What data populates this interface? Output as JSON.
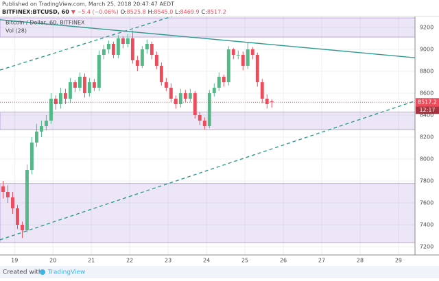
{
  "header": {
    "published": "Published on TradingView.com, March 25, 2018 20:47:47 AEDT",
    "symbol": "BITFINEX:BTCUSD, 60",
    "change": "▼ −5.4 (−0.06%)",
    "ohlc": [
      {
        "label": "O:",
        "value": "8525.8"
      },
      {
        "label": "H:",
        "value": "8545.0"
      },
      {
        "label": "L:",
        "value": "8469.9"
      },
      {
        "label": "C:",
        "value": "8517.2"
      }
    ]
  },
  "chart_data": {
    "type": "candlestick",
    "title": "Bitcoin / Dollar, 60, BITFINEX",
    "indicator": "Vol (28)",
    "x": [
      18.7,
      18.825,
      18.95,
      19.075,
      19.2,
      19.325,
      19.45,
      19.575,
      19.7,
      19.825,
      19.95,
      20.075,
      20.2,
      20.325,
      20.45,
      20.575,
      20.7,
      20.825,
      20.95,
      21.075,
      21.2,
      21.325,
      21.45,
      21.575,
      21.7,
      21.825,
      21.95,
      22.075,
      22.2,
      22.325,
      22.45,
      22.575,
      22.7,
      22.825,
      22.95,
      23.075,
      23.2,
      23.325,
      23.45,
      23.575,
      23.7,
      23.825,
      23.95,
      24.075,
      24.2,
      24.325,
      24.45,
      24.575,
      24.7,
      24.825,
      24.95,
      25.075,
      25.2,
      25.325,
      25.45,
      25.575,
      25.7
    ],
    "open": [
      7750,
      7700,
      7650,
      7550,
      7400,
      7350,
      7900,
      8150,
      8250,
      8300,
      8350,
      8550,
      8500,
      8600,
      8550,
      8700,
      8650,
      8750,
      8600,
      8700,
      8650,
      8950,
      9000,
      9050,
      8950,
      9100,
      9050,
      9100,
      8900,
      8850,
      9000,
      9050,
      8950,
      8850,
      8700,
      8650,
      8550,
      8500,
      8600,
      8550,
      8600,
      8400,
      8350,
      8300,
      8600,
      8650,
      8750,
      8700,
      9000,
      8950,
      8950,
      8850,
      9000,
      8950,
      8700,
      8550,
      8525.8
    ],
    "high": [
      7800,
      7760,
      7700,
      7580,
      7430,
      7950,
      8200,
      8320,
      8350,
      8400,
      8600,
      8580,
      8650,
      8640,
      8740,
      8720,
      8790,
      8780,
      8740,
      8730,
      8990,
      9040,
      9080,
      9070,
      9130,
      9120,
      9140,
      9170,
      8940,
      9030,
      9090,
      9070,
      8980,
      8880,
      8740,
      8690,
      8580,
      8640,
      8630,
      8640,
      8620,
      8430,
      8380,
      8630,
      8690,
      8790,
      8770,
      9030,
      9010,
      8990,
      8980,
      9060,
      9020,
      8970,
      8730,
      8590,
      8545
    ],
    "low": [
      7640,
      7600,
      7500,
      7360,
      7280,
      7330,
      7860,
      8110,
      8200,
      8260,
      8320,
      8450,
      8460,
      8500,
      8510,
      8610,
      8620,
      8560,
      8570,
      8620,
      8620,
      8910,
      8960,
      8920,
      8920,
      9010,
      9020,
      8870,
      8800,
      8830,
      8960,
      8910,
      8820,
      8670,
      8620,
      8520,
      8460,
      8470,
      8520,
      8520,
      8370,
      8310,
      8270,
      8280,
      8570,
      8620,
      8660,
      8670,
      8910,
      8910,
      8810,
      8820,
      8910,
      8660,
      8510,
      8460,
      8469.9
    ],
    "close": [
      7700,
      7650,
      7550,
      7400,
      7350,
      7900,
      8150,
      8250,
      8300,
      8350,
      8550,
      8500,
      8600,
      8550,
      8700,
      8650,
      8750,
      8600,
      8700,
      8650,
      8950,
      9000,
      9050,
      8950,
      9100,
      9050,
      9100,
      8900,
      8850,
      9000,
      9050,
      8950,
      8850,
      8700,
      8650,
      8550,
      8500,
      8600,
      8550,
      8600,
      8400,
      8350,
      8300,
      8600,
      8650,
      8750,
      8700,
      9000,
      8950,
      8950,
      8850,
      9000,
      8950,
      8700,
      8550,
      8500,
      8517.2
    ],
    "up_color": "#53b987",
    "down_color": "#eb4d5c",
    "last_price_color": "#eb4d5c",
    "countdown": "12:17",
    "xlim": [
      18.62,
      29.43
    ],
    "xticks": [
      19,
      20,
      21,
      22,
      23,
      24,
      25,
      26,
      27,
      28,
      29
    ],
    "ylim": [
      7125,
      9300
    ],
    "yticks": [
      7200,
      7400,
      7600,
      7800,
      8000,
      8200,
      8400,
      8600,
      8800,
      9000,
      9200
    ],
    "grid": true,
    "zones": [
      {
        "low": 9112,
        "high": 9287,
        "color": "#9575cd"
      },
      {
        "low": 8266,
        "high": 8429,
        "color": "#9575cd"
      },
      {
        "low": 7238,
        "high": 7777,
        "color": "#9575cd"
      }
    ],
    "trendlines": [
      {
        "x": [
          18.62,
          29.43
        ],
        "y": [
          9270,
          8924
        ],
        "dashed": false,
        "color": "#2e9b8f"
      },
      {
        "x": [
          18.62,
          23.1
        ],
        "y": [
          8811,
          9300
        ],
        "dashed": true,
        "color": "#2e9b8f"
      },
      {
        "x": [
          18.62,
          29.43
        ],
        "y": [
          7263,
          8529
        ],
        "dashed": true,
        "color": "#2e9b8f"
      }
    ]
  },
  "footer": {
    "created": "Created with",
    "brand": "TradingView"
  }
}
